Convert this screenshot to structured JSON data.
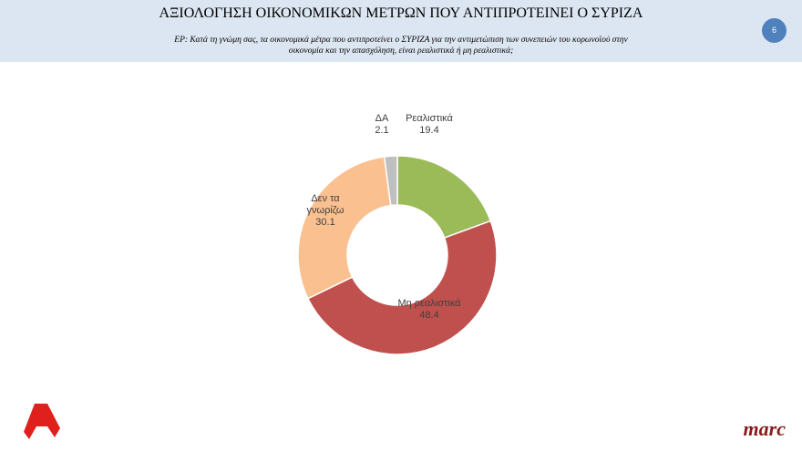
{
  "chart_data": {
    "type": "donut",
    "title": "ΑΞΙΟΛΟΓΗΣΗ ΟΙΚΟΝΟΜΙΚΩΝ ΜΕΤΡΩΝ ΠΟΥ ΑΝΤΙΠΡΟΤΕΙΝΕΙ Ο ΣΥΡΙΖΑ",
    "subtitle": "ΕΡ: Κατά τη γνώμη σας, τα οικονομικά μέτρα που αντιπροτείνει ο ΣΥΡΙΖΑ για την αντιμετώπιση των συνεπειών του κορωνοϊού στην οικονομία και την απασχόληση, είναι ρεαλιστικά ή μη ρεαλιστικά;",
    "categories": [
      "Ρεαλιστικά",
      "Μη ρεαλιστικά",
      "Δεν τα γνωρίζω",
      "ΔΑ"
    ],
    "values": [
      19.4,
      48.4,
      30.1,
      2.1
    ],
    "colors": [
      "#9bbb59",
      "#c0504d",
      "#fac090",
      "#bfbfbf"
    ]
  },
  "slide": {
    "page_number": "6",
    "brand": "marc"
  }
}
